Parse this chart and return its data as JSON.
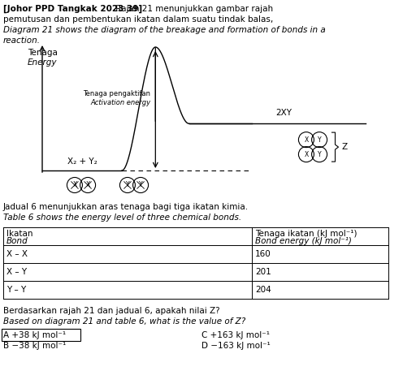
{
  "title_bold": "[Johor PPD Tangkak 2023 39]",
  "title_rest": " Rajah 21 menunjukkan gambar rajah",
  "title_line2": "pemutusan dan pembentukan ikatan dalam suatu tindak balas,",
  "title_italic1": "Diagram 21 shows the diagram of the breakage and formation of bonds in a",
  "title_italic2": "reaction.",
  "y_axis_label_line1": "Tenaga",
  "y_axis_label_line2": "Energy",
  "reactant_label": "X₂ + Y₂",
  "product_label": "2XY",
  "activation_label_ms": "Tenaga pengaktifan",
  "activation_label_en": "Activation energy",
  "z_label": "Z",
  "table_title_ms": "Jadual 6 menunjukkan aras tenaga bagi tiga ikatan kimia.",
  "table_title_en": "Table 6 shows the energy level of three chemical bonds.",
  "table_header_col1_ms": "Ikatan",
  "table_header_col1_en": "Bond",
  "table_header_col2_ms": "Tenaga ikatan (kJ mol⁻¹)",
  "table_header_col2_en": "Bond energy (kJ mol⁻¹)",
  "table_rows": [
    [
      "X – X",
      "160"
    ],
    [
      "X – Y",
      "201"
    ],
    [
      "Y – Y",
      "204"
    ]
  ],
  "question_ms": "Berdasarkan rajah 21 dan jadual 6, apakah nilai Z?",
  "question_en": "Based on diagram 21 and table 6, what is the value of Z?",
  "answer_A": "A +38 kJ mol⁻¹",
  "answer_B": "B −38 kJ mol⁻¹",
  "answer_C": "C +163 kJ mol⁻¹",
  "answer_D": "D −163 kJ mol⁻¹",
  "bg_color": "#ffffff",
  "text_color": "#000000"
}
